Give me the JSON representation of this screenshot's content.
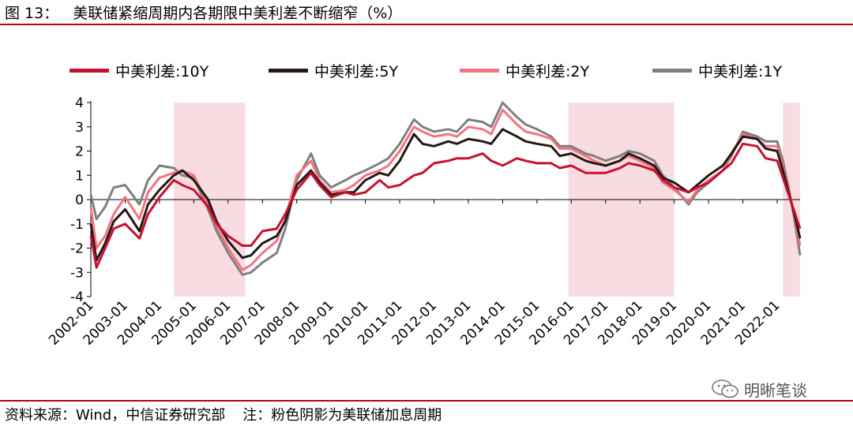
{
  "figure": {
    "title_prefix": "图 13：",
    "title": "美联储紧缩周期内各期限中美利差不断缩窄（%）",
    "source": "资料来源：Wind，中信证券研究部",
    "note": "注：粉色阴影为美联储加息周期",
    "watermark": "明晰笔谈"
  },
  "chart_data": {
    "type": "line",
    "title": "美联储紧缩周期内各期限中美利差不断缩窄（%）",
    "xlabel": "",
    "ylabel": "",
    "x_range": [
      "2002-01",
      "2022-09"
    ],
    "ylim": [
      -4,
      4
    ],
    "yticks": [
      -4,
      -3,
      -2,
      -1,
      0,
      1,
      2,
      3,
      4
    ],
    "xticks": [
      "2002-01",
      "2003-01",
      "2004-01",
      "2005-01",
      "2006-01",
      "2007-01",
      "2008-01",
      "2009-01",
      "2010-01",
      "2011-01",
      "2012-01",
      "2013-01",
      "2014-01",
      "2015-01",
      "2016-01",
      "2017-01",
      "2018-01",
      "2019-01",
      "2020-01",
      "2021-01",
      "2022-01"
    ],
    "grid": false,
    "legend_position": "top",
    "shaded_periods": [
      {
        "start": "2004-06",
        "end": "2006-07"
      },
      {
        "start": "2015-12",
        "end": "2019-01"
      },
      {
        "start": "2022-03",
        "end": "2022-09"
      }
    ],
    "shade_color": "#f9dce1",
    "x": [
      "2002-01",
      "2002-03",
      "2002-06",
      "2002-09",
      "2003-01",
      "2003-06",
      "2003-09",
      "2004-01",
      "2004-06",
      "2004-09",
      "2005-01",
      "2005-06",
      "2005-09",
      "2006-01",
      "2006-06",
      "2006-09",
      "2007-01",
      "2007-06",
      "2007-09",
      "2008-01",
      "2008-06",
      "2008-09",
      "2009-01",
      "2009-06",
      "2009-09",
      "2010-01",
      "2010-06",
      "2010-09",
      "2011-01",
      "2011-06",
      "2011-09",
      "2012-01",
      "2012-06",
      "2012-09",
      "2013-01",
      "2013-06",
      "2013-09",
      "2014-01",
      "2014-06",
      "2014-09",
      "2015-01",
      "2015-06",
      "2015-09",
      "2016-01",
      "2016-06",
      "2016-09",
      "2017-01",
      "2017-06",
      "2017-09",
      "2018-01",
      "2018-06",
      "2018-09",
      "2019-01",
      "2019-06",
      "2019-09",
      "2020-01",
      "2020-06",
      "2020-09",
      "2021-01",
      "2021-06",
      "2021-09",
      "2022-01",
      "2022-03",
      "2022-05",
      "2022-07",
      "2022-09"
    ],
    "series": [
      {
        "name": "中美利差:10Y",
        "color": "#c8102e",
        "values": [
          -1.5,
          -2.8,
          -2.0,
          -1.2,
          -1.0,
          -1.6,
          -0.6,
          0.1,
          0.8,
          0.6,
          0.4,
          -0.3,
          -1.0,
          -1.5,
          -1.9,
          -1.9,
          -1.3,
          -1.2,
          -0.6,
          0.4,
          1.1,
          0.6,
          0.1,
          0.3,
          0.2,
          0.3,
          0.8,
          0.5,
          0.6,
          1.0,
          1.1,
          1.5,
          1.6,
          1.7,
          1.7,
          1.9,
          1.6,
          1.4,
          1.7,
          1.6,
          1.5,
          1.5,
          1.3,
          1.4,
          1.1,
          1.1,
          1.1,
          1.3,
          1.5,
          1.4,
          1.2,
          0.8,
          0.5,
          0.3,
          0.5,
          0.7,
          1.2,
          1.5,
          2.3,
          2.2,
          1.7,
          1.6,
          0.9,
          0.2,
          -0.5,
          -1.2
        ]
      },
      {
        "name": "中美利差:5Y",
        "color": "#231815",
        "values": [
          -1.0,
          -2.5,
          -1.8,
          -0.9,
          -0.4,
          -1.3,
          -0.2,
          0.4,
          1.0,
          1.2,
          0.8,
          0.0,
          -0.9,
          -1.7,
          -2.4,
          -2.3,
          -1.8,
          -1.5,
          -0.9,
          0.6,
          1.2,
          0.7,
          0.2,
          0.3,
          0.3,
          0.8,
          1.1,
          1.0,
          1.6,
          2.7,
          2.3,
          2.2,
          2.4,
          2.3,
          2.5,
          2.4,
          2.3,
          2.9,
          2.6,
          2.4,
          2.3,
          2.2,
          1.8,
          1.9,
          1.6,
          1.5,
          1.4,
          1.6,
          1.9,
          1.7,
          1.4,
          0.9,
          0.7,
          0.3,
          0.6,
          1.0,
          1.4,
          1.9,
          2.6,
          2.5,
          2.1,
          2.0,
          1.2,
          0.3,
          -0.6,
          -1.6
        ]
      },
      {
        "name": "中美利差:2Y",
        "color": "#f4737e",
        "values": [
          -0.3,
          -2.0,
          -1.5,
          -0.6,
          0.1,
          -0.8,
          0.3,
          0.9,
          1.1,
          1.2,
          1.0,
          -0.2,
          -1.1,
          -2.0,
          -2.9,
          -2.7,
          -2.2,
          -1.7,
          -0.8,
          1.0,
          1.6,
          0.8,
          0.3,
          0.4,
          0.6,
          1.0,
          1.2,
          1.4,
          2.0,
          3.0,
          2.8,
          2.6,
          2.7,
          2.6,
          3.0,
          2.9,
          2.7,
          3.7,
          3.1,
          2.8,
          2.7,
          2.5,
          2.1,
          2.1,
          1.8,
          1.6,
          1.4,
          1.6,
          1.8,
          1.6,
          1.3,
          0.7,
          0.4,
          -0.1,
          0.4,
          0.8,
          1.2,
          1.9,
          2.7,
          2.5,
          2.2,
          2.2,
          1.4,
          0.4,
          -0.6,
          -1.9
        ]
      },
      {
        "name": "中美利差:1Y",
        "color": "#7f7f7f",
        "values": [
          0.2,
          -0.8,
          -0.3,
          0.5,
          0.6,
          -0.2,
          0.8,
          1.4,
          1.3,
          1.0,
          0.9,
          -0.4,
          -1.3,
          -2.2,
          -3.1,
          -3.0,
          -2.6,
          -2.2,
          -1.2,
          0.8,
          1.9,
          1.0,
          0.5,
          0.8,
          1.0,
          1.2,
          1.5,
          1.7,
          2.3,
          3.3,
          3.0,
          2.8,
          2.9,
          2.8,
          3.3,
          3.2,
          3.0,
          4.0,
          3.4,
          3.1,
          2.9,
          2.6,
          2.2,
          2.2,
          1.9,
          1.8,
          1.6,
          1.8,
          2.0,
          1.9,
          1.6,
          1.0,
          0.5,
          -0.2,
          0.3,
          0.7,
          1.2,
          1.8,
          2.8,
          2.6,
          2.4,
          2.4,
          1.6,
          0.5,
          -0.8,
          -2.3
        ]
      }
    ]
  }
}
